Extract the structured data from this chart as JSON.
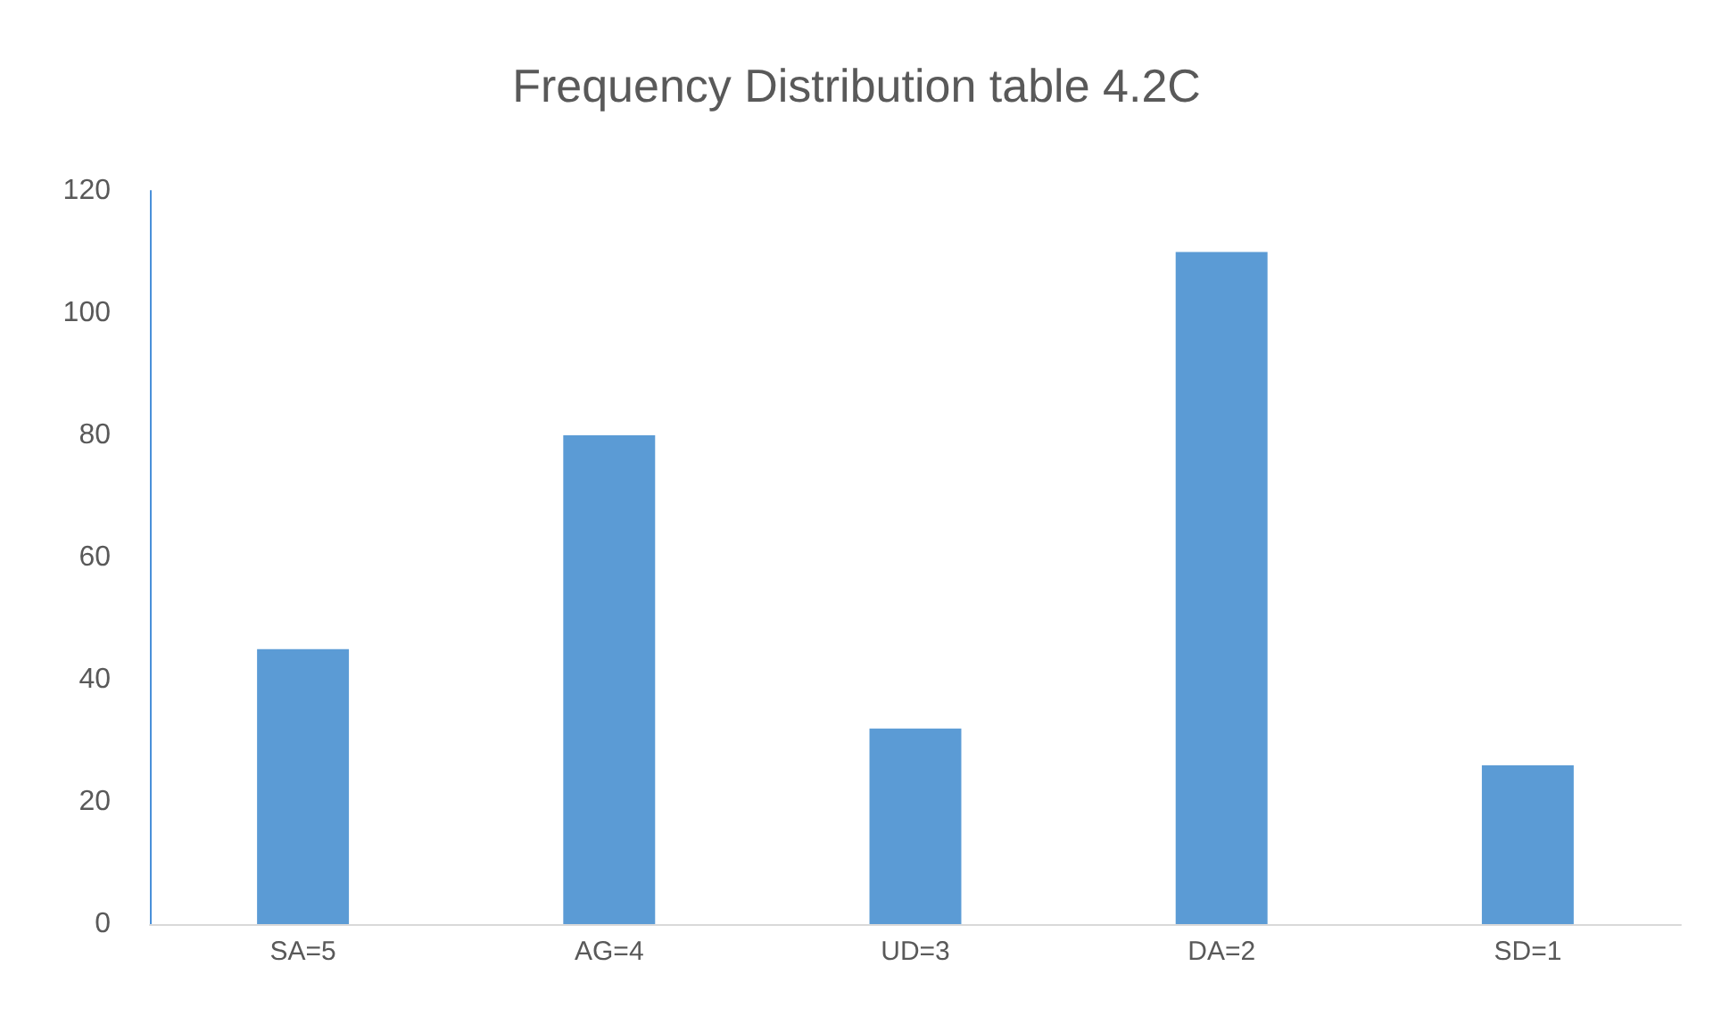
{
  "chart_data": {
    "type": "bar",
    "title": "Frequency Distribution table 4.2C",
    "categories": [
      "SA=5",
      "AG=4",
      "UD=3",
      "DA=2",
      "SD=1"
    ],
    "values": [
      45,
      80,
      32,
      110,
      26
    ],
    "color": "#5b9bd5",
    "ylim": [
      0,
      120
    ],
    "yticks": [
      0,
      20,
      40,
      60,
      80,
      100,
      120
    ],
    "grid": false
  }
}
